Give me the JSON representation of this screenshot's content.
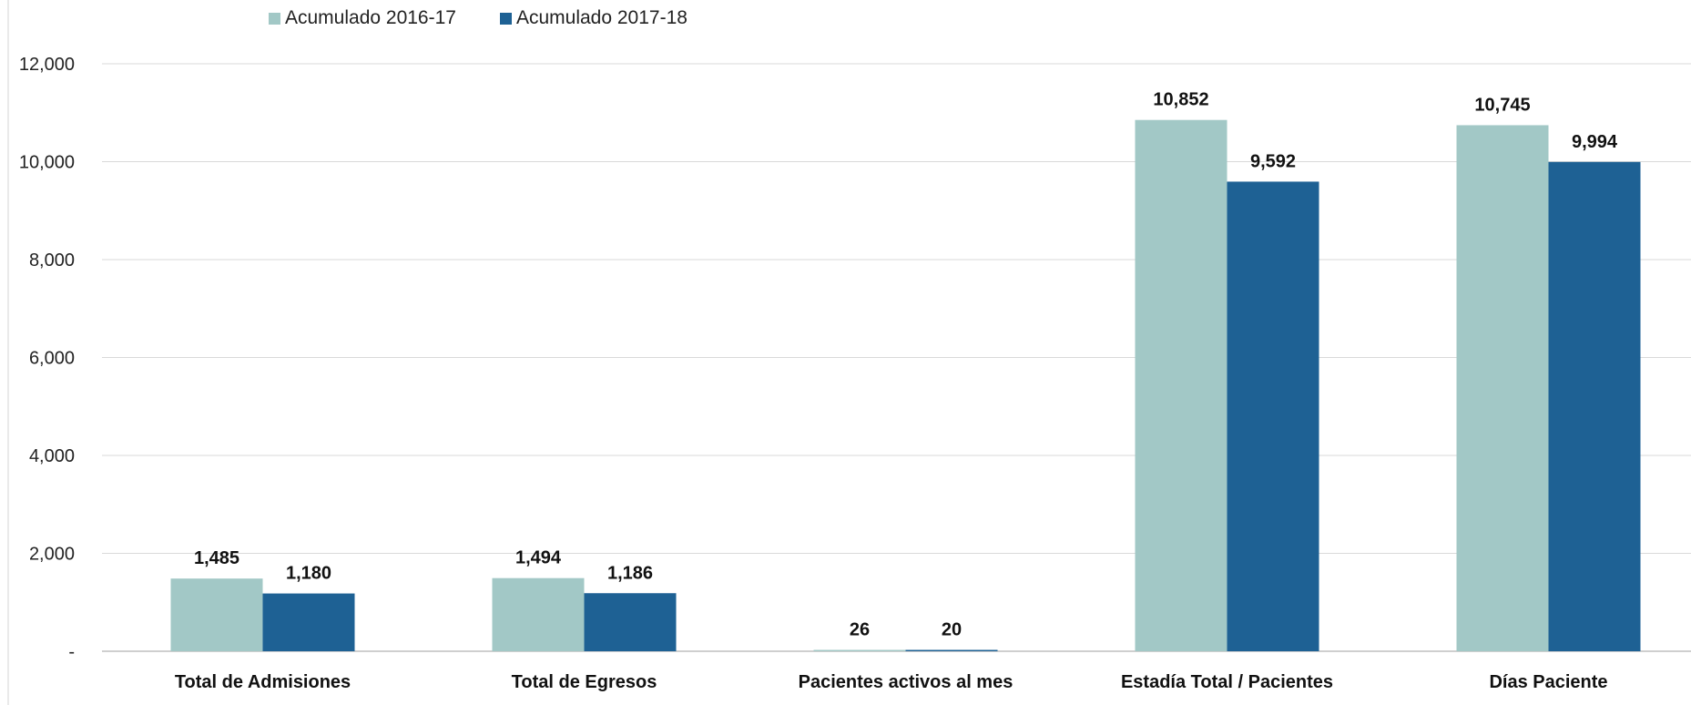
{
  "chart_data": {
    "type": "bar",
    "categories": [
      "Total de Admisiones",
      "Total de Egresos",
      "Pacientes activos al mes",
      "Estadía Total / Pacientes",
      "Días Paciente"
    ],
    "series": [
      {
        "name": "Acumulado 2016-17",
        "color": "#a2c8c6",
        "values": [
          1485,
          1494,
          26,
          10852,
          10745
        ],
        "labels": [
          "1,485",
          "1,494",
          "26",
          "10,852",
          "10,745"
        ]
      },
      {
        "name": "Acumulado 2017-18",
        "color": "#1e6194",
        "values": [
          1180,
          1186,
          20,
          9592,
          9994
        ],
        "labels": [
          "1,180",
          "1,186",
          "20",
          "9,592",
          "9,994"
        ]
      }
    ],
    "yticks": [
      0,
      2000,
      4000,
      6000,
      8000,
      10000,
      12000
    ],
    "ytick_labels": [
      "-",
      "2,000",
      "4,000",
      "6,000",
      "8,000",
      "10,000",
      "12,000"
    ],
    "ylim": [
      0,
      12000
    ],
    "grid": true,
    "legend_position": "top-left",
    "xlabel": "",
    "ylabel": ""
  }
}
